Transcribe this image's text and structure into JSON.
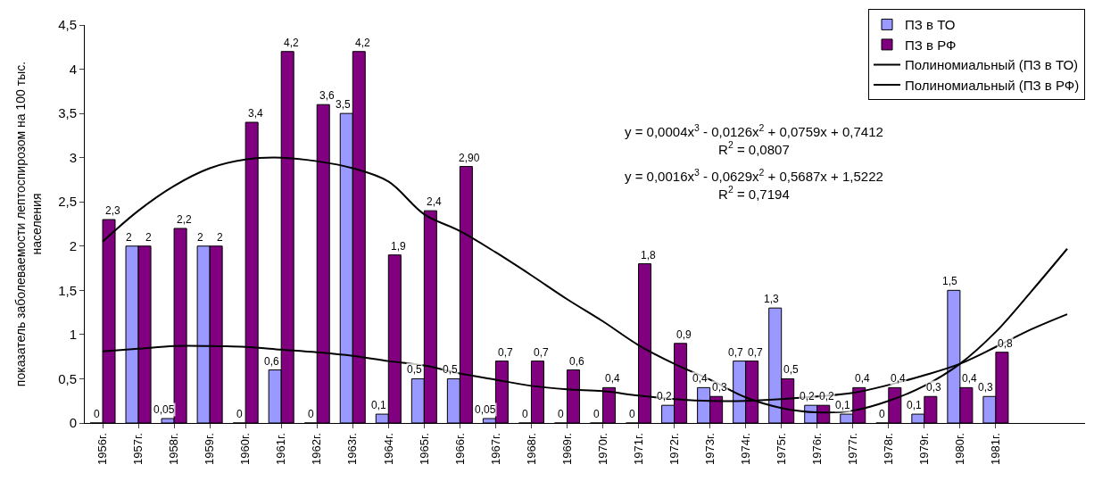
{
  "chart_data": {
    "type": "bar",
    "ylabel": "показатель заболеваемости лептоспирозом на 100 тыс.\nнаселения",
    "categories": [
      "1956г.",
      "1957г.",
      "1958г.",
      "1959г.",
      "1960г.",
      "1961г.",
      "1962г.",
      "1963г.",
      "1964г.",
      "1965г.",
      "1966г.",
      "1967г.",
      "1968г.",
      "1969г.",
      "1970г.",
      "1971г.",
      "1972г.",
      "1973г.",
      "1974г.",
      "1975г.",
      "1976г.",
      "1977г.",
      "1978г.",
      "1979г.",
      "1980г.",
      "1981г.",
      null,
      null
    ],
    "series": [
      {
        "name": "ПЗ в ТО",
        "color": "#9999ff",
        "values": [
          0,
          2,
          0.05,
          2,
          0,
          0.6,
          0,
          3.5,
          0.1,
          0.5,
          0.5,
          0.05,
          0,
          0,
          0,
          0,
          0.2,
          0.4,
          0.7,
          1.3,
          0.2,
          0.1,
          0,
          0.1,
          1.5,
          0.3,
          null,
          null
        ],
        "value_labels": [
          "0",
          "2",
          "0,05",
          "2",
          "0",
          "0,6",
          "0",
          "3,5",
          "0,1",
          "0,5",
          "0,5",
          "0,05",
          "0",
          "0",
          "0",
          "0",
          "0,2",
          "0,4",
          "0,7",
          "1,3",
          "0,2",
          "0,1",
          "0",
          "0,1",
          "1,5",
          "0,3",
          null,
          null
        ]
      },
      {
        "name": "ПЗ в РФ",
        "color": "#800080",
        "values": [
          2.3,
          2,
          2.2,
          2,
          3.4,
          4.2,
          3.6,
          4.2,
          1.9,
          2.4,
          2.9,
          0.7,
          0.7,
          0.6,
          0.4,
          1.8,
          0.9,
          0.3,
          0.7,
          0.5,
          0.2,
          0.4,
          0.4,
          0.3,
          0.4,
          0.8,
          null,
          null
        ],
        "value_labels": [
          "2,3",
          "2",
          "2,2",
          "2",
          "3,4",
          "4,2",
          "3,6",
          "4,2",
          "1,9",
          "2,4",
          "2,90",
          "0,7",
          "0,7",
          "0,6",
          "0,4",
          "1,8",
          "0,9",
          "0,3",
          "0,7",
          "0,5",
          "0,2",
          "0,4",
          "0,4",
          "0,3",
          "0,4",
          "0,8",
          null,
          null
        ]
      },
      {
        "name": "Полиномиальный (ПЗ в ТО)",
        "type": "line",
        "color": "#000000",
        "values": [
          0.81,
          0.84,
          0.87,
          0.87,
          0.86,
          0.83,
          0.8,
          0.76,
          0.7,
          0.65,
          0.56,
          0.49,
          0.42,
          0.38,
          0.36,
          0.31,
          0.27,
          0.25,
          0.25,
          0.27,
          0.3,
          0.34,
          0.43,
          0.54,
          0.67,
          0.86,
          1.06,
          1.23
        ]
      },
      {
        "name": "Полиномиальный (ПЗ в РФ)",
        "type": "line",
        "color": "#000000",
        "values": [
          2.05,
          2.4,
          2.68,
          2.88,
          2.98,
          3.0,
          2.96,
          2.88,
          2.73,
          2.36,
          2.17,
          1.93,
          1.67,
          1.4,
          1.15,
          0.88,
          0.67,
          0.49,
          0.29,
          0.17,
          0.12,
          0.14,
          0.25,
          0.42,
          0.67,
          1.03,
          1.49,
          1.97
        ]
      }
    ],
    "ylim": [
      0,
      4.5
    ],
    "yticks": [
      0,
      {
        "value": 0.5,
        "label": "0,5"
      },
      1,
      {
        "value": 1.5,
        "label": "1,5"
      },
      2,
      {
        "value": 2.5,
        "label": "2,5"
      },
      3,
      {
        "value": 3.5,
        "label": "3,5"
      },
      4,
      {
        "value": 4.5,
        "label": "4,5"
      }
    ],
    "legend": "top right",
    "marker": "none",
    "line_style": "solid",
    "annotations": [
      "y = 0,0004x$^{3}$ - 0,0126x$^{2}$ + 0,0759x + 0,7412\nR$^{2}$ = 0,0807",
      "y = 0,0016x$^{3}$ - 0,0629x$^{2}$ + 0,5687x + 1,5222\nR$^{2}$ = 0,7194"
    ]
  }
}
